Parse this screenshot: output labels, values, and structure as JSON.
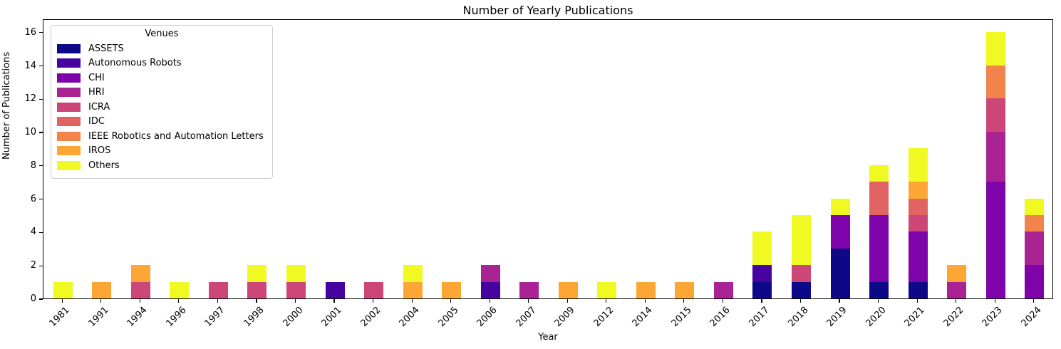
{
  "title": "Number of Yearly Publications",
  "xlabel": "Year",
  "ylabel": "Number of Publications",
  "legend": {
    "title": "Venues",
    "position": "upper left"
  },
  "yticks": [
    0,
    2,
    4,
    6,
    8,
    10,
    12,
    14,
    16
  ],
  "chart_data": {
    "type": "bar",
    "stacked": true,
    "title": "Number of Yearly Publications",
    "xlabel": "Year",
    "ylabel": "Number of Publications",
    "ylim": [
      0,
      16.8
    ],
    "grid": false,
    "legend_title": "Venues",
    "legend_position": "upper left",
    "categories": [
      "1981",
      "1991",
      "1994",
      "1996",
      "1997",
      "1998",
      "2000",
      "2001",
      "2002",
      "2004",
      "2005",
      "2006",
      "2007",
      "2009",
      "2012",
      "2014",
      "2015",
      "2016",
      "2017",
      "2018",
      "2019",
      "2020",
      "2021",
      "2022",
      "2023",
      "2024"
    ],
    "series": [
      {
        "name": "ASSETS",
        "color": "#0d0887",
        "values": [
          0,
          0,
          0,
          0,
          0,
          0,
          0,
          0,
          0,
          0,
          0,
          0,
          0,
          0,
          0,
          0,
          0,
          0,
          1,
          1,
          3,
          1,
          1,
          0,
          0,
          0
        ]
      },
      {
        "name": "Autonomous Robots",
        "color": "#46039f",
        "values": [
          0,
          0,
          0,
          0,
          0,
          0,
          0,
          1,
          0,
          0,
          0,
          1,
          0,
          0,
          0,
          0,
          0,
          0,
          1,
          0,
          0,
          0,
          0,
          0,
          0,
          0
        ]
      },
      {
        "name": "CHI",
        "color": "#7e03a8",
        "values": [
          0,
          0,
          0,
          0,
          0,
          0,
          0,
          0,
          0,
          0,
          0,
          0,
          0,
          0,
          0,
          0,
          0,
          0,
          0,
          0,
          2,
          4,
          3,
          0,
          7,
          2
        ]
      },
      {
        "name": "HRI",
        "color": "#aa2395",
        "values": [
          0,
          0,
          0,
          0,
          0,
          0,
          0,
          0,
          0,
          0,
          0,
          1,
          1,
          0,
          0,
          0,
          0,
          1,
          0,
          0,
          0,
          0,
          0,
          1,
          3,
          2
        ]
      },
      {
        "name": "ICRA",
        "color": "#cc4778",
        "values": [
          0,
          0,
          1,
          0,
          1,
          1,
          1,
          0,
          1,
          0,
          0,
          0,
          0,
          0,
          0,
          0,
          0,
          0,
          0,
          1,
          0,
          0,
          1,
          0,
          2,
          0
        ]
      },
      {
        "name": "IDC",
        "color": "#e16462",
        "values": [
          0,
          0,
          0,
          0,
          0,
          0,
          0,
          0,
          0,
          0,
          0,
          0,
          0,
          0,
          0,
          0,
          0,
          0,
          0,
          0,
          0,
          2,
          1,
          0,
          0,
          0
        ]
      },
      {
        "name": "IEEE Robotics and Automation Letters",
        "color": "#f2844b",
        "values": [
          0,
          0,
          0,
          0,
          0,
          0,
          0,
          0,
          0,
          0,
          0,
          0,
          0,
          0,
          0,
          0,
          0,
          0,
          0,
          0,
          0,
          0,
          0,
          0,
          2,
          1
        ]
      },
      {
        "name": "IROS",
        "color": "#fca636",
        "values": [
          0,
          1,
          1,
          0,
          0,
          0,
          0,
          0,
          0,
          1,
          1,
          0,
          0,
          1,
          0,
          1,
          1,
          0,
          0,
          0,
          0,
          0,
          1,
          1,
          0,
          0
        ]
      },
      {
        "name": "Others",
        "color": "#f0f921",
        "values": [
          1,
          0,
          0,
          1,
          0,
          1,
          1,
          0,
          0,
          1,
          0,
          0,
          0,
          0,
          1,
          0,
          0,
          0,
          2,
          3,
          1,
          1,
          2,
          0,
          2,
          1
        ]
      }
    ]
  }
}
